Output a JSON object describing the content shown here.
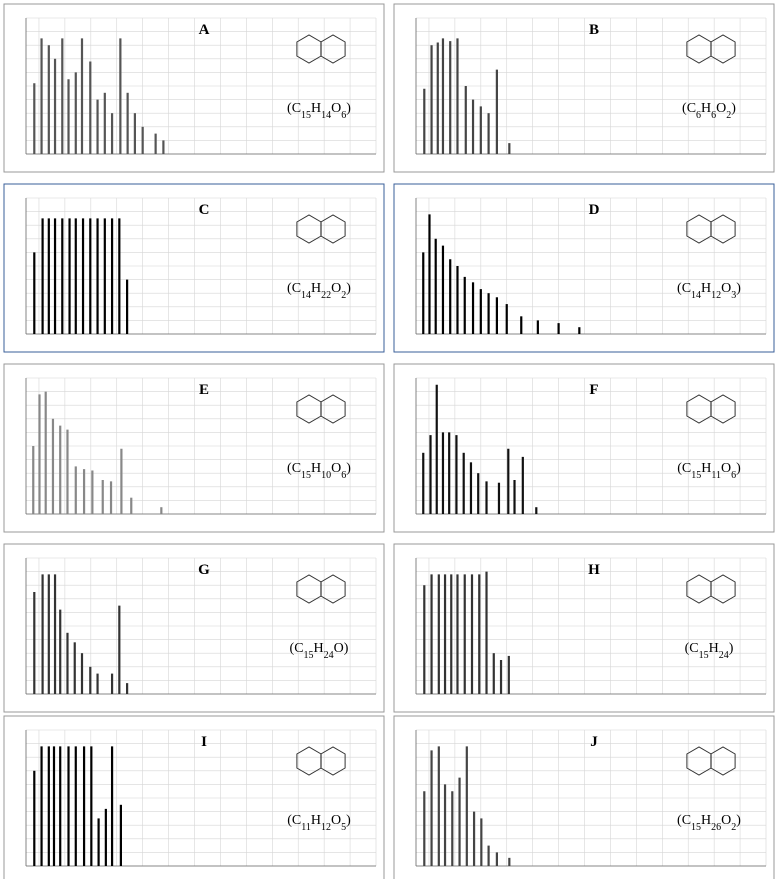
{
  "chart_data": [
    {
      "type": "bar",
      "title": "A",
      "annotation": "(C15H14O6)",
      "color": "#555555",
      "grid": true,
      "x": [
        41,
        55,
        69,
        81,
        95,
        107,
        121,
        133,
        149,
        163,
        177,
        191,
        207,
        221,
        235,
        250,
        275,
        290
      ],
      "values": [
        52,
        85,
        80,
        70,
        85,
        55,
        60,
        85,
        68,
        40,
        45,
        30,
        85,
        45,
        30,
        20,
        15,
        10
      ],
      "xlim": [
        25,
        700
      ],
      "ylim": [
        0,
        100
      ],
      "xticks": [
        50,
        100,
        150,
        200,
        250,
        300,
        350,
        400,
        450,
        500,
        550,
        600,
        650,
        700
      ],
      "yticks": [
        0,
        10,
        20,
        30,
        40,
        50,
        60,
        70,
        80,
        90,
        100
      ]
    },
    {
      "type": "bar",
      "title": "B",
      "annotation": "(C6H6O2)",
      "color": "#444444",
      "grid": true,
      "x": [
        41,
        55,
        67,
        77,
        91,
        105,
        121,
        135,
        150,
        165,
        181,
        205
      ],
      "values": [
        48,
        80,
        82,
        85,
        83,
        85,
        50,
        40,
        35,
        30,
        62,
        8
      ],
      "xlim": [
        25,
        700
      ],
      "ylim": [
        0,
        100
      ],
      "xticks": [
        50,
        100,
        150,
        200,
        250,
        300,
        350,
        400,
        450,
        500,
        550,
        600,
        650,
        700
      ],
      "yticks": [
        0,
        10,
        20,
        30,
        40,
        50,
        60,
        70,
        80,
        90,
        100
      ]
    },
    {
      "type": "bar",
      "title": "C",
      "annotation": "(C14H22O2)",
      "color": "#000000",
      "grid": true,
      "x": [
        41,
        57,
        69,
        81,
        95,
        109,
        121,
        135,
        149,
        163,
        177,
        191,
        205,
        220
      ],
      "values": [
        60,
        85,
        85,
        85,
        85,
        85,
        85,
        85,
        85,
        85,
        85,
        85,
        85,
        40
      ],
      "xlim": [
        25,
        700
      ],
      "ylim": [
        0,
        100
      ],
      "xticks": [
        50,
        100,
        150,
        200,
        250,
        300,
        350,
        400,
        450,
        500,
        550,
        600,
        650,
        700
      ],
      "yticks": [
        0,
        10,
        20,
        30,
        40,
        50,
        60,
        70,
        80,
        90,
        100
      ]
    },
    {
      "type": "bar",
      "title": "D",
      "annotation": "(C14H12O3)",
      "color": "#000000",
      "grid": true,
      "x": [
        39,
        51,
        63,
        77,
        91,
        105,
        119,
        135,
        150,
        165,
        181,
        200,
        228,
        260,
        300,
        340
      ],
      "values": [
        60,
        88,
        70,
        65,
        55,
        50,
        42,
        38,
        33,
        30,
        27,
        22,
        13,
        10,
        8,
        5
      ],
      "xlim": [
        25,
        700
      ],
      "ylim": [
        0,
        100
      ],
      "xticks": [
        50,
        100,
        150,
        200,
        250,
        300,
        350,
        400,
        450,
        500,
        550,
        600,
        650,
        700
      ],
      "yticks": [
        0,
        10,
        20,
        30,
        40,
        50,
        60,
        70,
        80,
        90,
        100
      ]
    },
    {
      "type": "bar",
      "title": "E",
      "annotation": "(C15H10O6)",
      "color": "#888888",
      "grid": true,
      "x": [
        39,
        51,
        63,
        77,
        91,
        105,
        121,
        137,
        153,
        173,
        189,
        209,
        228,
        286
      ],
      "values": [
        50,
        88,
        90,
        70,
        65,
        62,
        35,
        33,
        32,
        25,
        24,
        48,
        12,
        5
      ],
      "xlim": [
        25,
        700
      ],
      "ylim": [
        0,
        100
      ],
      "xticks": [
        50,
        100,
        150,
        200,
        250,
        300,
        350,
        400,
        450,
        500,
        550,
        600,
        650,
        700
      ],
      "yticks": [
        0,
        10,
        20,
        30,
        40,
        50,
        60,
        70,
        80,
        90,
        100
      ]
    },
    {
      "type": "bar",
      "title": "F",
      "annotation": "(C15H11O6)",
      "color": "#111111",
      "grid": true,
      "x": [
        39,
        53,
        65,
        77,
        89,
        103,
        117,
        131,
        145,
        161,
        185,
        203,
        215,
        231,
        257
      ],
      "values": [
        45,
        58,
        95,
        60,
        60,
        58,
        45,
        38,
        30,
        24,
        23,
        48,
        25,
        42,
        5
      ],
      "xlim": [
        25,
        700
      ],
      "ylim": [
        0,
        100
      ],
      "xticks": [
        50,
        100,
        150,
        200,
        250,
        300,
        350,
        400,
        450,
        500,
        550,
        600,
        650,
        700
      ],
      "yticks": [
        0,
        10,
        20,
        30,
        40,
        50,
        60,
        70,
        80,
        90,
        100
      ]
    },
    {
      "type": "bar",
      "title": "G",
      "annotation": "(C15H24O)",
      "color": "#333333",
      "grid": true,
      "x": [
        41,
        57,
        69,
        81,
        91,
        105,
        119,
        133,
        149,
        163,
        191,
        205,
        220
      ],
      "values": [
        75,
        88,
        88,
        88,
        62,
        45,
        38,
        30,
        20,
        15,
        15,
        65,
        8
      ],
      "xlim": [
        25,
        700
      ],
      "ylim": [
        0,
        100
      ],
      "xticks": [
        50,
        100,
        150,
        200,
        250,
        300,
        350,
        400,
        450,
        500,
        550,
        600,
        650,
        700
      ],
      "yticks": [
        0,
        10,
        20,
        30,
        40,
        50,
        60,
        70,
        80,
        90,
        100
      ]
    },
    {
      "type": "bar",
      "title": "H",
      "annotation": "(C15H24)",
      "color": "#333333",
      "grid": true,
      "x": [
        41,
        55,
        69,
        81,
        93,
        105,
        119,
        133,
        147,
        161,
        175,
        189,
        204
      ],
      "values": [
        80,
        88,
        88,
        88,
        88,
        88,
        88,
        88,
        88,
        90,
        30,
        25,
        28
      ],
      "xlim": [
        25,
        700
      ],
      "ylim": [
        0,
        100
      ],
      "xticks": [
        50,
        100,
        150,
        200,
        250,
        300,
        350,
        400,
        450,
        500,
        550,
        600,
        650,
        700
      ],
      "yticks": [
        0,
        10,
        20,
        30,
        40,
        50,
        60,
        70,
        80,
        90,
        100
      ]
    },
    {
      "type": "bar",
      "title": "I",
      "annotation": "(C11H12O5)",
      "color": "#000000",
      "grid": true,
      "x": [
        41,
        55,
        69,
        79,
        91,
        107,
        121,
        137,
        151,
        165,
        179,
        191,
        208
      ],
      "values": [
        70,
        88,
        88,
        88,
        88,
        88,
        88,
        88,
        88,
        35,
        42,
        88,
        45
      ],
      "xlim": [
        25,
        700
      ],
      "ylim": [
        0,
        100
      ],
      "xticks": [
        50,
        100,
        150,
        200,
        250,
        300,
        350,
        400,
        450,
        500,
        550,
        600,
        650,
        700
      ],
      "yticks": [
        0,
        10,
        20,
        30,
        40,
        50,
        60,
        70,
        80,
        90,
        100
      ]
    },
    {
      "type": "bar",
      "title": "J",
      "annotation": "(C15H26O2)",
      "color": "#444444",
      "grid": true,
      "x": [
        41,
        55,
        69,
        81,
        95,
        109,
        123,
        137,
        151,
        165,
        181,
        205
      ],
      "values": [
        55,
        85,
        88,
        60,
        55,
        65,
        88,
        40,
        35,
        15,
        10,
        6
      ],
      "xlim": [
        25,
        700
      ],
      "ylim": [
        0,
        100
      ],
      "xticks": [
        50,
        100,
        150,
        200,
        250,
        300,
        350,
        400,
        450,
        500,
        550,
        600,
        650,
        700
      ],
      "yticks": [
        0,
        10,
        20,
        30,
        40,
        50,
        60,
        70,
        80,
        90,
        100
      ]
    }
  ]
}
